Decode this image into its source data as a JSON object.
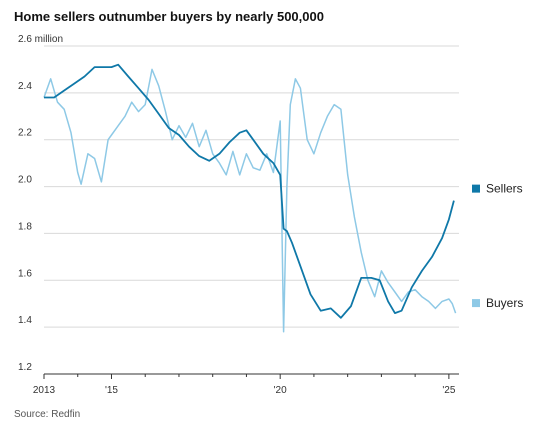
{
  "title": "Home sellers outnumber buyers by nearly 500,000",
  "source": "Source: Redfin",
  "colors": {
    "sellers": "#0f78a8",
    "buyers": "#8ec9e6",
    "grid": "#d9d9d9",
    "axis": "#333333"
  },
  "chart_data": {
    "type": "line",
    "title": "Home sellers outnumber buyers by nearly 500,000",
    "ylabel": "",
    "xlabel": "",
    "y_unit": "million",
    "ylim": [
      1.2,
      2.6
    ],
    "xlim": [
      2013.0,
      2025.3
    ],
    "yticks": [
      {
        "value": 2.6,
        "label": "2.6 million"
      },
      {
        "value": 2.4,
        "label": "2.4"
      },
      {
        "value": 2.2,
        "label": "2.2"
      },
      {
        "value": 2.0,
        "label": "2.0"
      },
      {
        "value": 1.8,
        "label": "1.8"
      },
      {
        "value": 1.6,
        "label": "1.6"
      },
      {
        "value": 1.4,
        "label": "1.4"
      },
      {
        "value": 1.2,
        "label": "1.2"
      }
    ],
    "xticks": [
      {
        "value": 2013,
        "label": "2013"
      },
      {
        "value": 2015,
        "label": "'15"
      },
      {
        "value": 2020,
        "label": "'20"
      },
      {
        "value": 2025,
        "label": "'25"
      }
    ],
    "grid": true,
    "legend": "right, labels at line ends",
    "series": [
      {
        "name": "Sellers",
        "x": [
          2013.0,
          2013.3,
          2013.6,
          2013.9,
          2014.2,
          2014.5,
          2014.8,
          2015.0,
          2015.2,
          2015.5,
          2015.8,
          2016.1,
          2016.4,
          2016.7,
          2017.0,
          2017.3,
          2017.6,
          2017.9,
          2018.2,
          2018.5,
          2018.8,
          2019.0,
          2019.2,
          2019.5,
          2019.8,
          2020.0,
          2020.1,
          2020.2,
          2020.35,
          2020.6,
          2020.9,
          2021.2,
          2021.5,
          2021.8,
          2022.1,
          2022.4,
          2022.7,
          2022.95,
          2023.2,
          2023.4,
          2023.6,
          2023.9,
          2024.2,
          2024.5,
          2024.8,
          2025.0,
          2025.15
        ],
        "values": [
          2.38,
          2.38,
          2.41,
          2.44,
          2.47,
          2.51,
          2.51,
          2.51,
          2.52,
          2.47,
          2.42,
          2.37,
          2.31,
          2.25,
          2.22,
          2.17,
          2.13,
          2.11,
          2.14,
          2.19,
          2.23,
          2.24,
          2.2,
          2.14,
          2.1,
          2.05,
          1.82,
          1.81,
          1.76,
          1.66,
          1.54,
          1.47,
          1.48,
          1.44,
          1.49,
          1.61,
          1.61,
          1.6,
          1.51,
          1.46,
          1.47,
          1.57,
          1.64,
          1.7,
          1.78,
          1.86,
          1.94
        ]
      },
      {
        "name": "Buyers",
        "x": [
          2013.0,
          2013.2,
          2013.4,
          2013.6,
          2013.8,
          2014.0,
          2014.1,
          2014.3,
          2014.5,
          2014.7,
          2014.9,
          2015.0,
          2015.2,
          2015.4,
          2015.6,
          2015.8,
          2016.0,
          2016.2,
          2016.4,
          2016.6,
          2016.8,
          2017.0,
          2017.2,
          2017.4,
          2017.6,
          2017.8,
          2018.0,
          2018.2,
          2018.4,
          2018.6,
          2018.8,
          2019.0,
          2019.2,
          2019.4,
          2019.6,
          2019.8,
          2020.0,
          2020.1,
          2020.2,
          2020.3,
          2020.45,
          2020.6,
          2020.8,
          2021.0,
          2021.2,
          2021.4,
          2021.6,
          2021.8,
          2022.0,
          2022.2,
          2022.4,
          2022.6,
          2022.8,
          2023.0,
          2023.2,
          2023.4,
          2023.6,
          2023.8,
          2024.0,
          2024.2,
          2024.4,
          2024.6,
          2024.8,
          2025.0,
          2025.1,
          2025.2
        ],
        "values": [
          2.38,
          2.46,
          2.36,
          2.33,
          2.23,
          2.06,
          2.01,
          2.14,
          2.12,
          2.02,
          2.2,
          2.22,
          2.26,
          2.3,
          2.36,
          2.32,
          2.35,
          2.5,
          2.43,
          2.32,
          2.2,
          2.26,
          2.21,
          2.27,
          2.17,
          2.24,
          2.14,
          2.1,
          2.05,
          2.15,
          2.05,
          2.14,
          2.08,
          2.07,
          2.14,
          2.06,
          2.28,
          1.38,
          2.0,
          2.35,
          2.46,
          2.42,
          2.2,
          2.14,
          2.23,
          2.3,
          2.35,
          2.33,
          2.05,
          1.87,
          1.72,
          1.6,
          1.53,
          1.64,
          1.59,
          1.55,
          1.51,
          1.55,
          1.56,
          1.53,
          1.51,
          1.48,
          1.51,
          1.52,
          1.5,
          1.46
        ]
      }
    ]
  }
}
